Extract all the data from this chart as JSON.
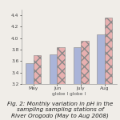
{
  "months": [
    "May",
    "Jun",
    "July",
    "Aug"
  ],
  "series1": [
    3.56,
    3.72,
    3.84,
    4.06
  ],
  "series2": [
    3.7,
    3.84,
    3.96,
    4.36
  ],
  "series1_color": "#aab4d8",
  "series2_color": "#e8b0b0",
  "series2_hatch": "xxx",
  "xlabel": "globe I globe I",
  "ylim_min": 3.2,
  "ylim_max": 4.5,
  "yticks": [
    3.2,
    3.4,
    3.6,
    3.8,
    4.0,
    4.2,
    4.4
  ],
  "bar_width": 0.32,
  "caption": "Fig. 2: Monthly variation in pH in the\nsampling sampling stations of\nRiver Orogodo (May to Aug 2008)",
  "caption_fontsize": 5.2,
  "tick_fontsize": 4.2,
  "label_fontsize": 4.2,
  "background_color": "#f0ede8"
}
